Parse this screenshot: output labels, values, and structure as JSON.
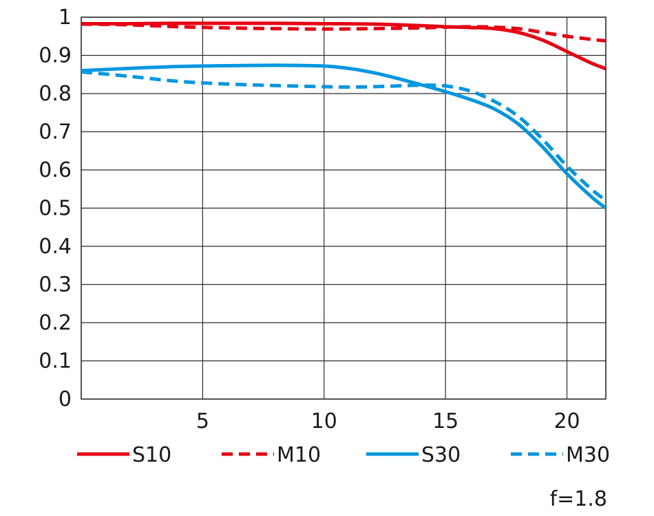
{
  "chart_data": {
    "type": "line",
    "title": "",
    "xlabel": "",
    "ylabel": "",
    "xlim": [
      0,
      21.6
    ],
    "ylim": [
      0,
      1
    ],
    "x_ticks": [
      5,
      10,
      15,
      20
    ],
    "x_tick_labels": [
      "5",
      "10",
      "15",
      "20"
    ],
    "y_ticks": [
      0,
      0.1,
      0.2,
      0.3,
      0.4,
      0.5,
      0.6,
      0.7,
      0.8,
      0.9,
      1
    ],
    "y_tick_labels": [
      "0",
      "0.1",
      "0.2",
      "0.3",
      "0.4",
      "0.5",
      "0.6",
      "0.7",
      "0.8",
      "0.9",
      "1"
    ],
    "grid": true,
    "legend_position": "bottom",
    "note": "f=1.8",
    "series": [
      {
        "name": "S10",
        "color": "#e60012",
        "dash": "solid",
        "x": [
          0,
          2,
          4,
          6,
          8,
          10,
          12,
          14,
          15,
          16,
          17,
          18,
          19,
          20,
          21,
          21.6
        ],
        "y": [
          0.983,
          0.983,
          0.984,
          0.984,
          0.984,
          0.983,
          0.982,
          0.978,
          0.975,
          0.973,
          0.97,
          0.96,
          0.94,
          0.91,
          0.88,
          0.865
        ]
      },
      {
        "name": "M10",
        "color": "#e60012",
        "dash": "dashed",
        "x": [
          0,
          2,
          4,
          6,
          8,
          10,
          12,
          14,
          15,
          16,
          17,
          18,
          19,
          20,
          21,
          21.6
        ],
        "y": [
          0.982,
          0.98,
          0.975,
          0.972,
          0.97,
          0.969,
          0.97,
          0.972,
          0.974,
          0.975,
          0.974,
          0.97,
          0.96,
          0.95,
          0.942,
          0.938
        ]
      },
      {
        "name": "S30",
        "color": "#0096e0",
        "dash": "solid",
        "x": [
          0,
          2,
          4,
          6,
          8,
          10,
          11,
          12,
          13,
          14,
          15,
          16,
          17,
          18,
          19,
          20,
          21,
          21.6
        ],
        "y": [
          0.86,
          0.866,
          0.871,
          0.873,
          0.874,
          0.872,
          0.866,
          0.855,
          0.84,
          0.823,
          0.805,
          0.785,
          0.76,
          0.72,
          0.66,
          0.59,
          0.53,
          0.5
        ]
      },
      {
        "name": "M30",
        "color": "#0096e0",
        "dash": "dashed",
        "x": [
          0,
          2,
          4,
          6,
          8,
          10,
          11,
          12,
          13,
          14,
          15,
          16,
          17,
          18,
          19,
          20,
          21,
          21.6
        ],
        "y": [
          0.857,
          0.845,
          0.832,
          0.825,
          0.821,
          0.818,
          0.817,
          0.818,
          0.82,
          0.822,
          0.82,
          0.807,
          0.78,
          0.74,
          0.68,
          0.61,
          0.55,
          0.52
        ]
      }
    ]
  }
}
